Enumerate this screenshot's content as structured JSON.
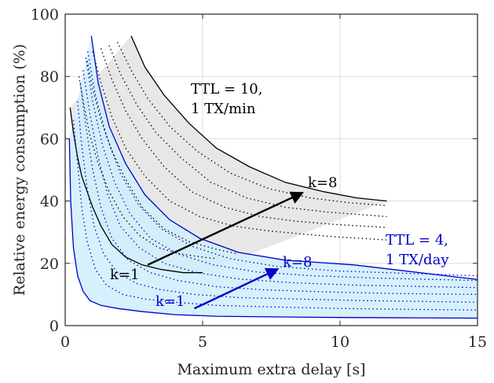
{
  "chart_data": {
    "type": "line",
    "title": "",
    "xlabel": "Maximum extra delay [s]",
    "ylabel": "Relative energy consumption (%)",
    "xlim": [
      0,
      15
    ],
    "ylim": [
      0,
      100
    ],
    "x_ticks": [
      "0",
      "5",
      "10",
      "15"
    ],
    "y_ticks": [
      "0",
      "20",
      "40",
      "60",
      "80",
      "100"
    ],
    "grid": true,
    "colors": {
      "ttl10": "#000000",
      "ttl10_fill": "#e6e6e6",
      "ttl4": "#0000cc",
      "ttl4_fill": "#cfeefc"
    },
    "groups": [
      {
        "label_line1": "TTL = 10,",
        "label_line2": "1 TX/min",
        "color": "#000000",
        "k_start_label": "k=1",
        "k_end_label": "k=8",
        "series": [
          {
            "k": 1,
            "x": [
              0.18,
              0.3,
              0.45,
              0.6,
              0.8,
              1.0,
              1.3,
              1.7,
              2.2,
              2.8,
              3.5,
              4.3,
              5.0
            ],
            "y": [
              70,
              62,
              54,
              48,
              43,
              38,
              32,
              26,
              22,
              19.5,
              18,
              17,
              17
            ]
          },
          {
            "k": 2,
            "x": [
              0.5,
              0.7,
              0.9,
              1.2,
              1.6,
              2.1,
              2.7,
              3.4,
              4.2,
              5.0,
              5.5
            ],
            "y": [
              80,
              70,
              61,
              52,
              43,
              35,
              29,
              25,
              23,
              22,
              21.5
            ]
          },
          {
            "k": 3,
            "x": [
              0.8,
              1.0,
              1.3,
              1.7,
              2.2,
              2.8,
              3.6,
              4.5,
              5.5,
              6.3
            ],
            "y": [
              85,
              76,
              66,
              56,
              47,
              38,
              31,
              27,
              24.5,
              23
            ]
          },
          {
            "k": 4,
            "x": [
              1.0,
              1.3,
              1.7,
              2.2,
              2.9,
              3.8,
              4.9,
              6.1,
              7.3,
              8.5,
              9.8,
              11.7
            ],
            "y": [
              88,
              78,
              67,
              57,
              48,
              40,
              35,
              32,
              30.5,
              29.5,
              28.5,
              27.5
            ]
          },
          {
            "k": 5,
            "x": [
              1.3,
              1.7,
              2.2,
              2.8,
              3.6,
              4.6,
              5.8,
              7.1,
              8.4,
              9.8,
              11.7
            ],
            "y": [
              89,
              79,
              69,
              60,
              51,
              43,
              38,
              35,
              33.5,
              32.5,
              31.5
            ]
          },
          {
            "k": 6,
            "x": [
              1.6,
              2.0,
              2.6,
              3.3,
              4.2,
              5.3,
              6.6,
              8.0,
              9.5,
              11.7
            ],
            "y": [
              90,
              81,
              71,
              62,
              54,
              46,
              41,
              38,
              36.5,
              35
            ]
          },
          {
            "k": 7,
            "x": [
              1.9,
              2.4,
              3.0,
              3.8,
              4.8,
              6.0,
              7.4,
              8.9,
              10.3,
              11.7
            ],
            "y": [
              91,
              82,
              73,
              64,
              56,
              49,
              44,
              41,
              39.5,
              38.5
            ]
          },
          {
            "k": 8,
            "x": [
              2.4,
              2.9,
              3.6,
              4.5,
              5.5,
              6.7,
              8.0,
              9.4,
              10.6,
              11.7
            ],
            "y": [
              93,
              83,
              74,
              65,
              57,
              51,
              46,
              43,
              41,
              40
            ]
          }
        ]
      },
      {
        "label_line1": "TTL = 4,",
        "label_line2": "1 TX/day",
        "color": "#0000cc",
        "k_start_label": "k=1",
        "k_end_label": "k=8",
        "series": [
          {
            "k": 1,
            "x": [
              0.15,
              0.2,
              0.3,
              0.45,
              0.65,
              0.9,
              1.3,
              1.9,
              2.8,
              4.0,
              5.5,
              7.5,
              10.0,
              12.5,
              15.0
            ],
            "y": [
              60,
              40,
              25,
              16,
              11,
              8,
              6.5,
              5.5,
              4.5,
              3.5,
              3,
              2.8,
              2.6,
              2.5,
              2.4
            ]
          },
          {
            "k": 2,
            "x": [
              0.3,
              0.45,
              0.6,
              0.8,
              1.1,
              1.5,
              2.1,
              2.9,
              4.0,
              5.5,
              7.5,
              10.0,
              12.5,
              15.0
            ],
            "y": [
              66,
              52,
              38,
              27,
              18,
              13,
              10,
              8.5,
              7.5,
              6.5,
              6,
              5.5,
              5.2,
              5
            ]
          },
          {
            "k": 3,
            "x": [
              0.45,
              0.6,
              0.8,
              1.05,
              1.4,
              1.9,
              2.6,
              3.5,
              4.7,
              6.3,
              8.5,
              11.0,
              15.0
            ],
            "y": [
              72,
              58,
              44,
              32,
              23,
              17,
              13.5,
              11.5,
              10,
              9,
              8.5,
              8,
              7.5
            ]
          },
          {
            "k": 4,
            "x": [
              0.55,
              0.75,
              1.0,
              1.3,
              1.7,
              2.3,
              3.1,
              4.1,
              5.5,
              7.2,
              9.5,
              12.0,
              15.0
            ],
            "y": [
              78,
              64,
              50,
              38,
              28,
              21,
              17,
              14.5,
              12.5,
              11.5,
              10.8,
              10.3,
              10
            ]
          },
          {
            "k": 5,
            "x": [
              0.65,
              0.9,
              1.2,
              1.55,
              2.0,
              2.7,
              3.6,
              4.8,
              6.3,
              8.2,
              10.5,
              15.0
            ],
            "y": [
              82,
              68,
              54,
              42,
              32,
              25,
              20,
              17,
              15,
              13.8,
              13,
              12.2
            ]
          },
          {
            "k": 6,
            "x": [
              0.75,
              1.0,
              1.35,
              1.8,
              2.35,
              3.1,
              4.1,
              5.4,
              7.0,
              9.0,
              11.5,
              15.0
            ],
            "y": [
              86,
              72,
              58,
              46,
              36,
              28,
              23,
              19.5,
              17.2,
              16,
              15.2,
              14.5
            ]
          },
          {
            "k": 7,
            "x": [
              0.82,
              1.1,
              1.5,
              2.0,
              2.65,
              3.5,
              4.6,
              6.0,
              7.7,
              10.0,
              15.0
            ],
            "y": [
              88,
              74,
              61,
              49,
              39,
              31,
              25.5,
              21.5,
              19,
              17.5,
              16
            ]
          },
          {
            "k": 8,
            "x": [
              0.95,
              1.2,
              1.6,
              2.2,
              2.9,
              3.8,
              4.9,
              6.3,
              8.0,
              10.5,
              15.0
            ],
            "y": [
              93,
              78,
              64,
              52,
              42,
              34,
              28,
              23.5,
              21,
              19.5,
              14.8
            ]
          }
        ]
      }
    ]
  }
}
